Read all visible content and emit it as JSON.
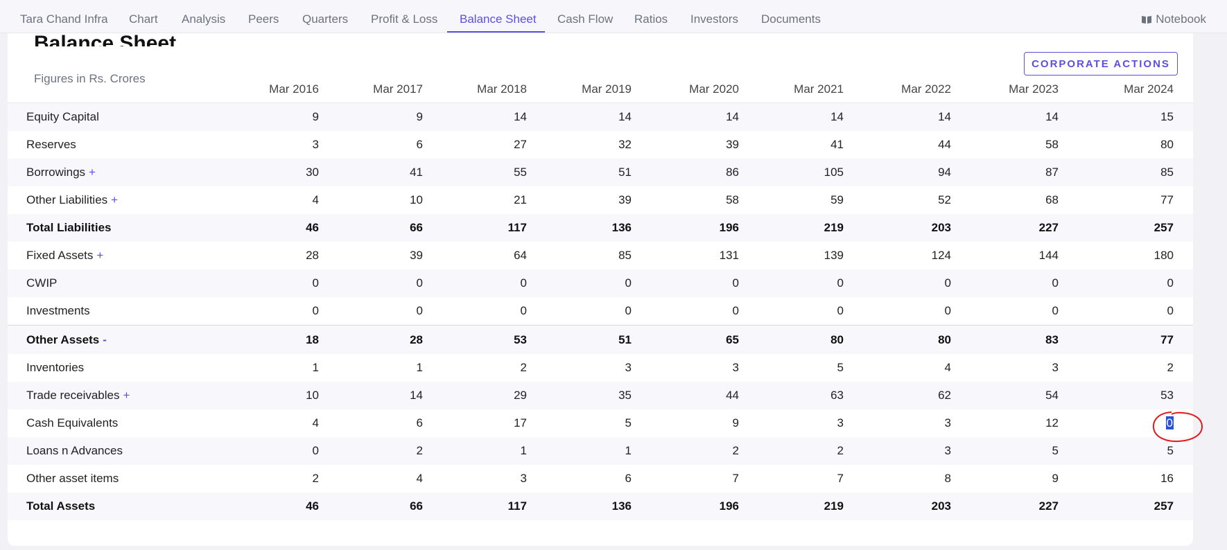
{
  "nav": {
    "items": [
      {
        "label": "Tara Chand Infra",
        "name": "nav-company"
      },
      {
        "label": "Chart",
        "name": "nav-chart"
      },
      {
        "label": "Analysis",
        "name": "nav-analysis"
      },
      {
        "label": "Peers",
        "name": "nav-peers"
      },
      {
        "label": "Quarters",
        "name": "nav-quarters"
      },
      {
        "label": "Profit & Loss",
        "name": "nav-profit-loss"
      },
      {
        "label": "Balance Sheet",
        "name": "nav-balance-sheet"
      },
      {
        "label": "Cash Flow",
        "name": "nav-cash-flow"
      },
      {
        "label": "Ratios",
        "name": "nav-ratios"
      },
      {
        "label": "Investors",
        "name": "nav-investors"
      },
      {
        "label": "Documents",
        "name": "nav-documents"
      }
    ],
    "active": "Balance Sheet",
    "notebook_label": "Notebook"
  },
  "section": {
    "title": "Balance Sheet",
    "subtitle": "Figures in Rs. Crores",
    "corporate_actions_label": "CORPORATE ACTIONS"
  },
  "table": {
    "columns": [
      "Mar 2016",
      "Mar 2017",
      "Mar 2018",
      "Mar 2019",
      "Mar 2020",
      "Mar 2021",
      "Mar 2022",
      "Mar 2023",
      "Mar 2024"
    ],
    "rows": [
      {
        "label": "Equity Capital",
        "values": [
          "9",
          "9",
          "14",
          "14",
          "14",
          "14",
          "14",
          "14",
          "15"
        ],
        "expand": "",
        "bold": false
      },
      {
        "label": "Reserves",
        "values": [
          "3",
          "6",
          "27",
          "32",
          "39",
          "41",
          "44",
          "58",
          "80"
        ],
        "expand": "",
        "bold": false
      },
      {
        "label": "Borrowings",
        "values": [
          "30",
          "41",
          "55",
          "51",
          "86",
          "105",
          "94",
          "87",
          "85"
        ],
        "expand": "+",
        "bold": false
      },
      {
        "label": "Other Liabilities",
        "values": [
          "4",
          "10",
          "21",
          "39",
          "58",
          "59",
          "52",
          "68",
          "77"
        ],
        "expand": "+",
        "bold": false
      },
      {
        "label": "Total Liabilities",
        "values": [
          "46",
          "66",
          "117",
          "136",
          "196",
          "219",
          "203",
          "227",
          "257"
        ],
        "expand": "",
        "bold": true
      },
      {
        "label": "Fixed Assets",
        "values": [
          "28",
          "39",
          "64",
          "85",
          "131",
          "139",
          "124",
          "144",
          "180"
        ],
        "expand": "+",
        "bold": false
      },
      {
        "label": "CWIP",
        "values": [
          "0",
          "0",
          "0",
          "0",
          "0",
          "0",
          "0",
          "0",
          "0"
        ],
        "expand": "",
        "bold": false
      },
      {
        "label": "Investments",
        "values": [
          "0",
          "0",
          "0",
          "0",
          "0",
          "0",
          "0",
          "0",
          "0"
        ],
        "expand": "",
        "bold": false
      },
      {
        "label": "Other Assets",
        "values": [
          "18",
          "28",
          "53",
          "51",
          "65",
          "80",
          "80",
          "83",
          "77"
        ],
        "expand": "-",
        "bold": true
      },
      {
        "label": "Inventories",
        "values": [
          "1",
          "1",
          "2",
          "3",
          "3",
          "5",
          "4",
          "3",
          "2"
        ],
        "expand": "",
        "bold": false
      },
      {
        "label": "Trade receivables",
        "values": [
          "10",
          "14",
          "29",
          "35",
          "44",
          "63",
          "62",
          "54",
          "53"
        ],
        "expand": "+",
        "bold": false
      },
      {
        "label": "Cash Equivalents",
        "values": [
          "4",
          "6",
          "17",
          "5",
          "9",
          "3",
          "3",
          "12",
          "0"
        ],
        "expand": "",
        "bold": false
      },
      {
        "label": "Loans n Advances",
        "values": [
          "0",
          "2",
          "1",
          "1",
          "2",
          "2",
          "3",
          "5",
          "5"
        ],
        "expand": "",
        "bold": false
      },
      {
        "label": "Other asset items",
        "values": [
          "2",
          "4",
          "3",
          "6",
          "7",
          "7",
          "8",
          "9",
          "16"
        ],
        "expand": "",
        "bold": false
      },
      {
        "label": "Total Assets",
        "values": [
          "46",
          "66",
          "117",
          "136",
          "196",
          "219",
          "203",
          "227",
          "257"
        ],
        "expand": "",
        "bold": true
      }
    ],
    "selected_cell": {
      "row": "Cash Equivalents",
      "column": "Mar 2024"
    }
  },
  "colors": {
    "accent": "#5a4fe0",
    "annotation": "#e01b1b",
    "selection": "#2a50d8"
  }
}
